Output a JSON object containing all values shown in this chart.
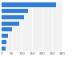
{
  "values": [
    270,
    130,
    110,
    85,
    52,
    32,
    25,
    18
  ],
  "bar_color": "#2f7ed8",
  "background_color": "#ffffff",
  "plot_bg_color": "#f2f2f2",
  "xlim": [
    0,
    300
  ],
  "bar_height": 0.65,
  "gridline_color": "#ffffff",
  "xtick_fontsize": 3,
  "xtick_values": [
    0,
    50,
    100,
    150,
    200,
    250,
    300
  ],
  "right_margin_color": "#e8e8e8"
}
